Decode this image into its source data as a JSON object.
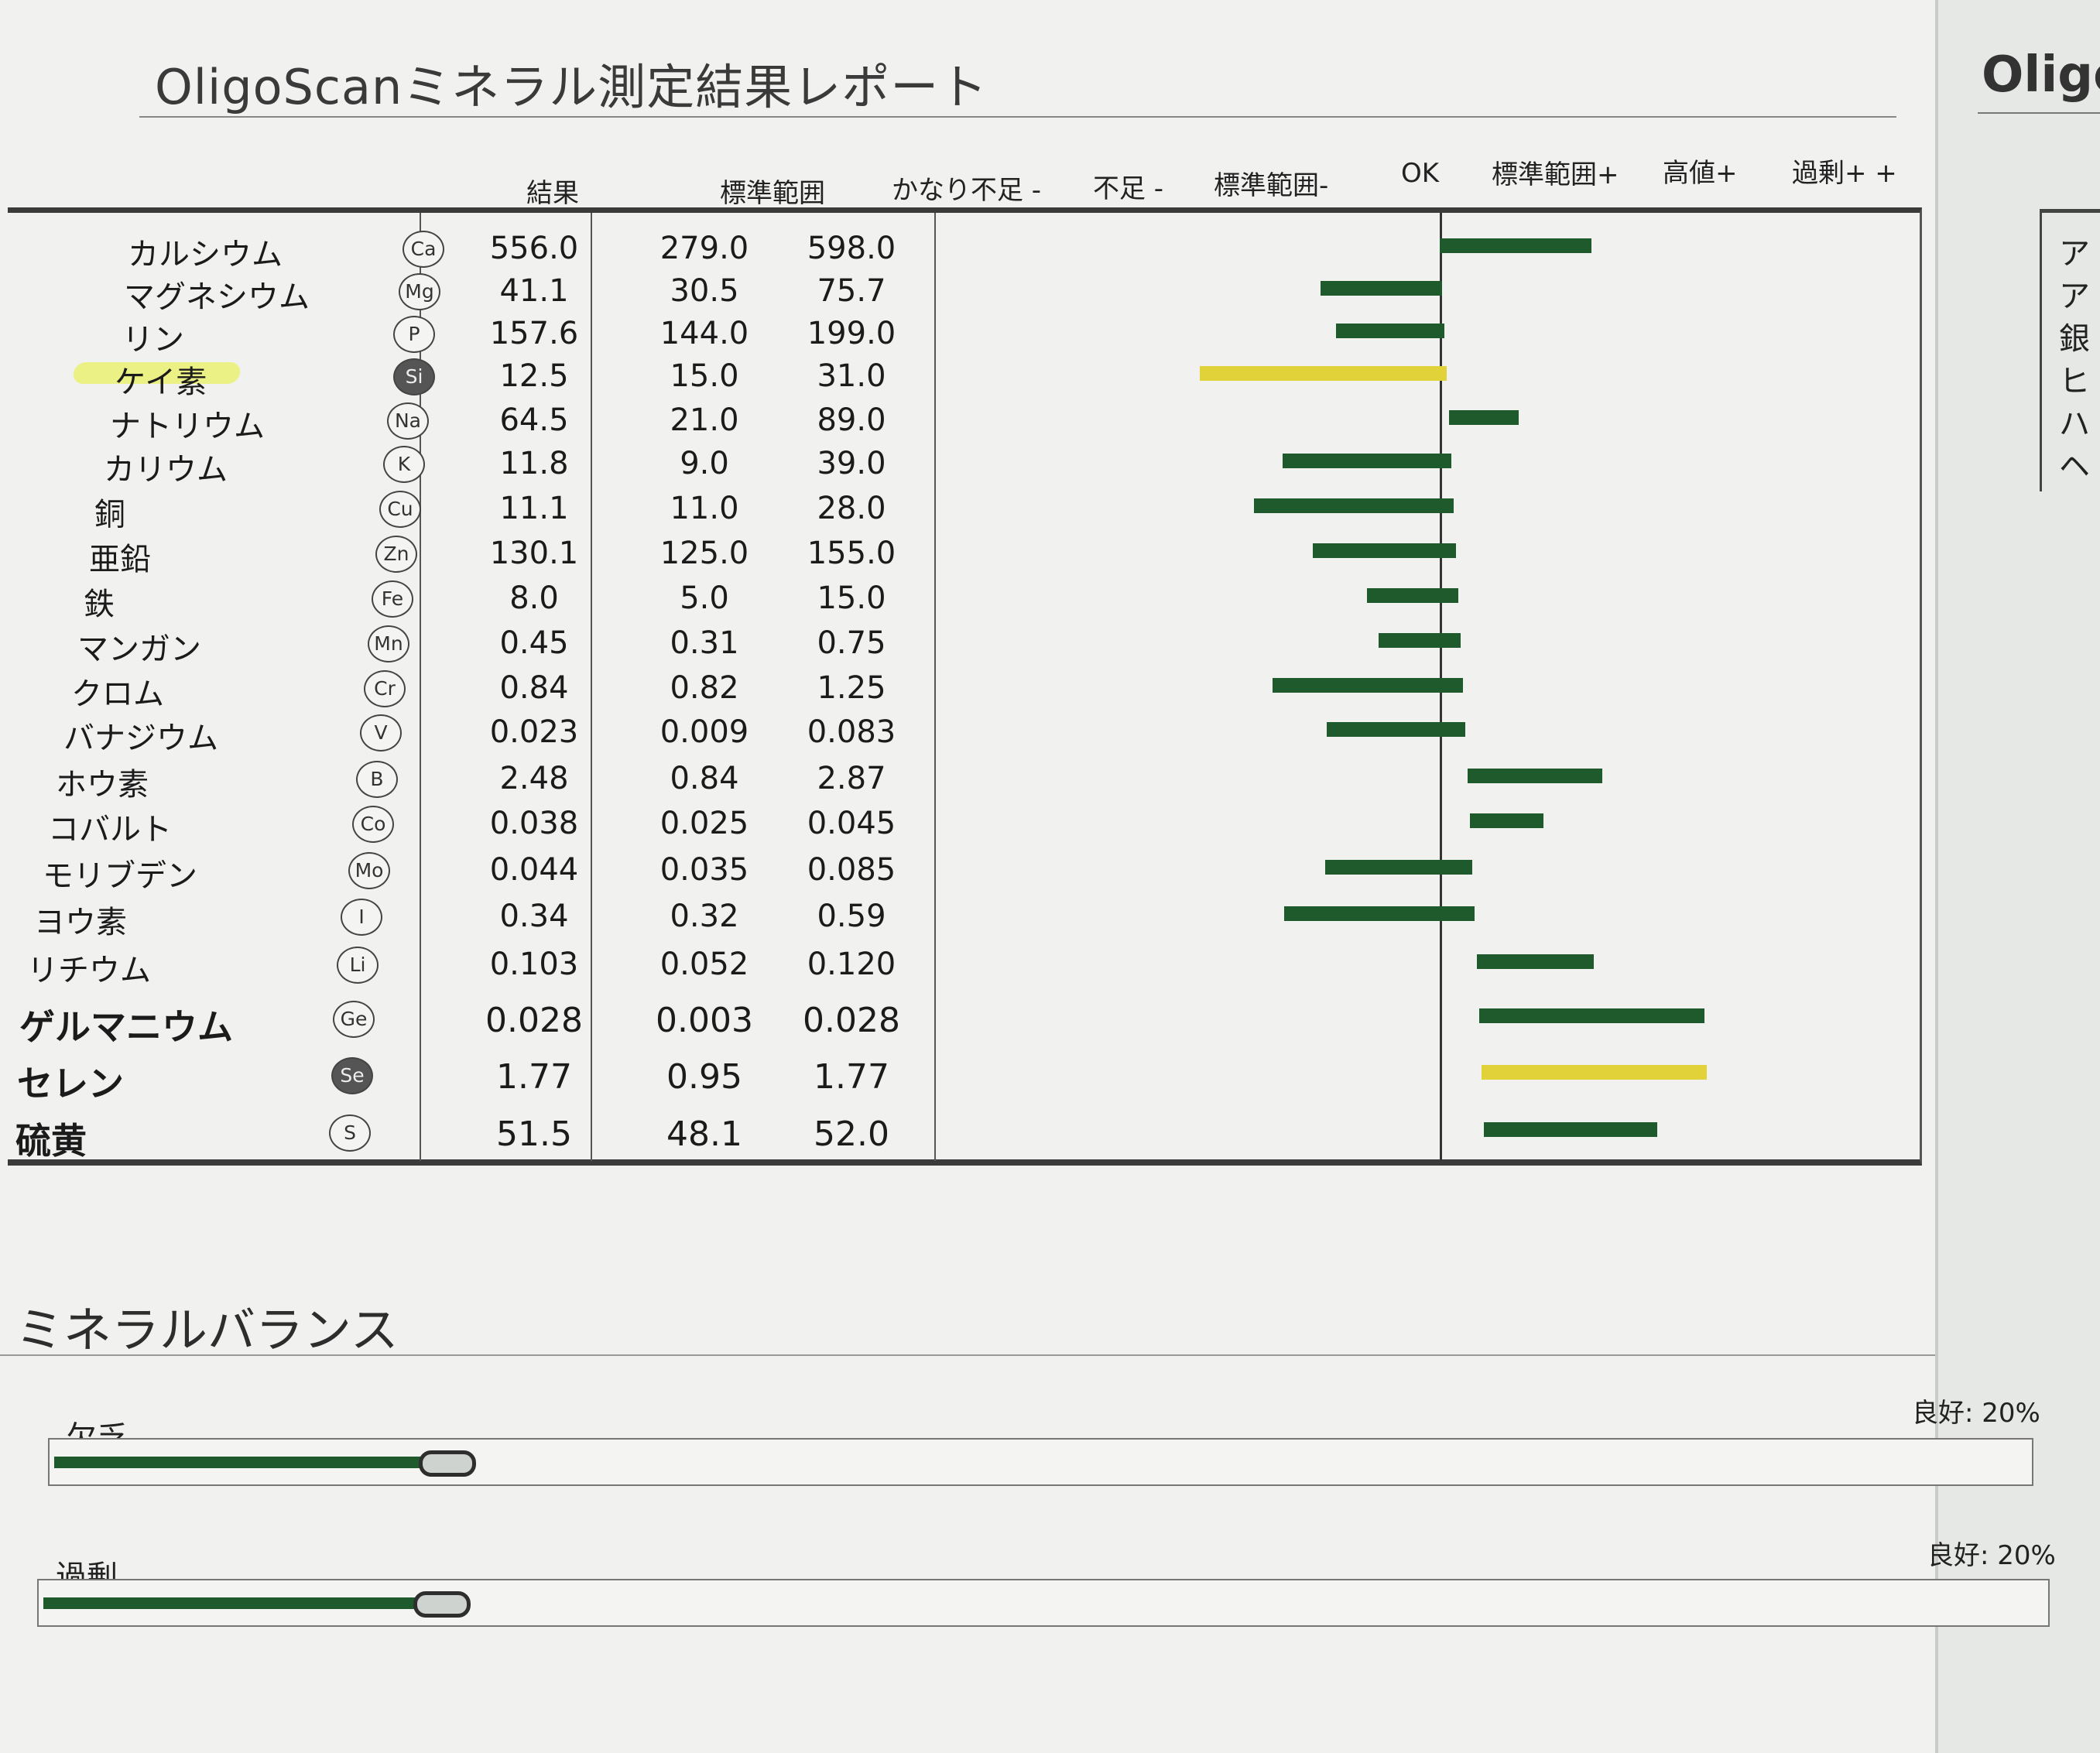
{
  "report": {
    "title": "OligoScanミネラル測定結果レポート"
  },
  "headers": {
    "result": "結果",
    "standard_range": "標準範囲",
    "very_low": "かなり不足 -",
    "low": "不足 -",
    "range_minus": "標準範囲-",
    "ok": "OK",
    "range_plus": "標準範囲+",
    "high": "高値+",
    "excess": "過剰+ +"
  },
  "minerals": [
    {
      "name": "カルシウム",
      "symbol": "Ca",
      "result": "556.0",
      "min": "279.0",
      "max": "598.0",
      "level": 0.35,
      "color": "#1f5a2c"
    },
    {
      "name": "マグネシウム",
      "symbol": "Mg",
      "result": "41.1",
      "min": "30.5",
      "max": "75.7",
      "level": -0.28,
      "color": "#1f5a2c"
    },
    {
      "name": "リン",
      "symbol": "P",
      "result": "157.6",
      "min": "144.0",
      "max": "199.0",
      "level": -0.25,
      "color": "#1f5a2c"
    },
    {
      "name": "ケイ素",
      "symbol": "Si",
      "result": "12.5",
      "min": "15.0",
      "max": "31.0",
      "level": -0.57,
      "color": "#e2d23a",
      "highlight": true
    },
    {
      "name": "ナトリウム",
      "symbol": "Na",
      "result": "64.5",
      "min": "21.0",
      "max": "89.0",
      "level": 0.16,
      "color": "#1f5a2c"
    },
    {
      "name": "カリウム",
      "symbol": "K",
      "result": "11.8",
      "min": "9.0",
      "max": "39.0",
      "level": -0.39,
      "color": "#1f5a2c"
    },
    {
      "name": "銅",
      "symbol": "Cu",
      "result": "11.1",
      "min": "11.0",
      "max": "28.0",
      "level": -0.46,
      "color": "#1f5a2c"
    },
    {
      "name": "亜鉛",
      "symbol": "Zn",
      "result": "130.1",
      "min": "125.0",
      "max": "155.0",
      "level": -0.33,
      "color": "#1f5a2c"
    },
    {
      "name": "鉄",
      "symbol": "Fe",
      "result": "8.0",
      "min": "5.0",
      "max": "15.0",
      "level": -0.21,
      "color": "#1f5a2c"
    },
    {
      "name": "マンガン",
      "symbol": "Mn",
      "result": "0.45",
      "min": "0.31",
      "max": "0.75",
      "level": -0.19,
      "color": "#1f5a2c"
    },
    {
      "name": "クロム",
      "symbol": "Cr",
      "result": "0.84",
      "min": "0.82",
      "max": "1.25",
      "level": -0.44,
      "color": "#1f5a2c"
    },
    {
      "name": "バナジウム",
      "symbol": "V",
      "result": "0.023",
      "min": "0.009",
      "max": "0.083",
      "level": -0.32,
      "color": "#1f5a2c"
    },
    {
      "name": "ホウ素",
      "symbol": "B",
      "result": "2.48",
      "min": "0.84",
      "max": "2.87",
      "level": 0.31,
      "color": "#1f5a2c"
    },
    {
      "name": "コバルト",
      "symbol": "Co",
      "result": "0.038",
      "min": "0.025",
      "max": "0.045",
      "level": 0.17,
      "color": "#1f5a2c"
    },
    {
      "name": "モリブデン",
      "symbol": "Mo",
      "result": "0.044",
      "min": "0.035",
      "max": "0.085",
      "level": -0.34,
      "color": "#1f5a2c"
    },
    {
      "name": "ヨウ素",
      "symbol": "I",
      "result": "0.34",
      "min": "0.32",
      "max": "0.59",
      "level": -0.44,
      "color": "#1f5a2c"
    },
    {
      "name": "リチウム",
      "symbol": "Li",
      "result": "0.103",
      "min": "0.052",
      "max": "0.120",
      "level": 0.27,
      "color": "#1f5a2c"
    },
    {
      "name": "ゲルマニウム",
      "symbol": "Ge",
      "result": "0.028",
      "min": "0.003",
      "max": "0.028",
      "level": 0.52,
      "color": "#1f5a2c"
    },
    {
      "name": "セレン",
      "symbol": "Se",
      "result": "1.77",
      "min": "0.95",
      "max": "1.77",
      "level": 0.52,
      "color": "#e2d23a"
    },
    {
      "name": "硫黄",
      "symbol": "S",
      "result": "51.5",
      "min": "48.1",
      "max": "52.0",
      "level": 0.4,
      "color": "#1f5a2c"
    }
  ],
  "balance": {
    "title": "ミネラルバランス",
    "deficiency": {
      "label": "欠乏",
      "good": "良好: 20%",
      "level": 0.2
    },
    "excess": {
      "label": "過剰",
      "good": "良好: 20%",
      "level": 0.2
    }
  },
  "side_sheet": {
    "title": "Oligo",
    "rows": [
      "ア",
      "ア",
      "銀",
      "ヒ",
      "ハ",
      "ヘ"
    ]
  }
}
